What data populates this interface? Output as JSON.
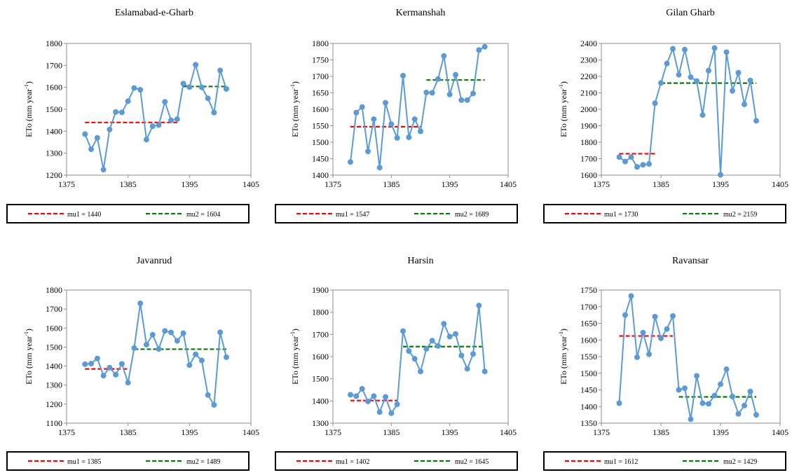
{
  "chart_data": [
    {
      "type": "line",
      "title": "Eslamabad-e-Gharb",
      "ylabel": "ETo (mm year",
      "ylabel_sup": "-1",
      "ylabel_end": ")",
      "xlim": [
        1375,
        1405
      ],
      "xticks": [
        "1375",
        "1385",
        "1395",
        "1405"
      ],
      "ylim": [
        1200,
        1800
      ],
      "yticks": [
        "1200",
        "1300",
        "1400",
        "1500",
        "1600",
        "1700",
        "1800"
      ],
      "x": [
        1378,
        1379,
        1380,
        1381,
        1382,
        1383,
        1384,
        1385,
        1386,
        1387,
        1388,
        1389,
        1390,
        1391,
        1392,
        1393,
        1394,
        1395,
        1396,
        1397,
        1398,
        1399,
        1400,
        1401
      ],
      "values": [
        1387,
        1318,
        1370,
        1225,
        1408,
        1488,
        1486,
        1537,
        1597,
        1589,
        1362,
        1423,
        1428,
        1534,
        1450,
        1455,
        1617,
        1601,
        1703,
        1600,
        1550,
        1485,
        1677,
        1593
      ],
      "mu1": {
        "label": "mu1 = 1440",
        "value": 1440,
        "x": [
          1378,
          1393
        ],
        "color": "#ff0000"
      },
      "mu2": {
        "label": "mu2 = 1604",
        "value": 1604,
        "x": [
          1394,
          1401
        ],
        "color": "#008000"
      },
      "series_color": "#5b9bd5",
      "grid": false,
      "legend": "bottom"
    },
    {
      "type": "line",
      "title": "Kermanshah",
      "ylabel": "ETo (mm year",
      "ylabel_sup": "-1",
      "ylabel_end": ")",
      "xlim": [
        1375,
        1405
      ],
      "xticks": [
        "1375",
        "1385",
        "1395",
        "1405"
      ],
      "ylim": [
        1400,
        1800
      ],
      "yticks": [
        "1400",
        "1450",
        "1500",
        "1550",
        "1600",
        "1650",
        "1700",
        "1750",
        "1800"
      ],
      "x": [
        1378,
        1379,
        1380,
        1381,
        1382,
        1383,
        1384,
        1385,
        1386,
        1387,
        1388,
        1389,
        1390,
        1391,
        1392,
        1393,
        1394,
        1395,
        1396,
        1397,
        1398,
        1399,
        1400,
        1401
      ],
      "values": [
        1440,
        1590,
        1607,
        1472,
        1570,
        1423,
        1620,
        1555,
        1513,
        1702,
        1515,
        1570,
        1533,
        1651,
        1650,
        1692,
        1762,
        1645,
        1705,
        1628,
        1628,
        1648,
        1780,
        1790
      ],
      "mu1": {
        "label": "mu1 = 1547",
        "value": 1547,
        "x": [
          1378,
          1390
        ],
        "color": "#ff0000"
      },
      "mu2": {
        "label": "mu2 = 1689",
        "value": 1689,
        "x": [
          1391,
          1401
        ],
        "color": "#008000"
      },
      "series_color": "#5b9bd5",
      "grid": false,
      "legend": "bottom"
    },
    {
      "type": "line",
      "title": "Gilan Gharb",
      "ylabel": "ETo (mm year",
      "ylabel_sup": "-1",
      "ylabel_end": ")",
      "xlim": [
        1375,
        1405
      ],
      "xticks": [
        "1375",
        "1385",
        "1395",
        "1405"
      ],
      "ylim": [
        1600,
        2400
      ],
      "yticks": [
        "1600",
        "1700",
        "1800",
        "1900",
        "2000",
        "2100",
        "2200",
        "2300",
        "2400"
      ],
      "x": [
        1378,
        1379,
        1380,
        1381,
        1382,
        1383,
        1384,
        1385,
        1386,
        1387,
        1388,
        1389,
        1390,
        1391,
        1392,
        1393,
        1394,
        1395,
        1396,
        1397,
        1398,
        1399,
        1400,
        1401
      ],
      "values": [
        1710,
        1683,
        1710,
        1650,
        1663,
        1668,
        2037,
        2160,
        2278,
        2368,
        2210,
        2363,
        2195,
        2172,
        1965,
        2235,
        2372,
        1602,
        2347,
        2112,
        2222,
        2030,
        2175,
        1930
      ],
      "mu1": {
        "label": "mu1 = 1730",
        "value": 1730,
        "x": [
          1378,
          1384
        ],
        "color": "#ff0000"
      },
      "mu2": {
        "label": "mu2 = 2159",
        "value": 2159,
        "x": [
          1385,
          1401
        ],
        "color": "#008000"
      },
      "series_color": "#5b9bd5",
      "grid": false,
      "legend": "bottom"
    },
    {
      "type": "line",
      "title": "Javanrud",
      "ylabel": "ETo (mm year",
      "ylabel_sup": "-1",
      "ylabel_end": ")",
      "xlim": [
        1375,
        1405
      ],
      "xticks": [
        "1375",
        "1385",
        "1395",
        "1405"
      ],
      "ylim": [
        1100,
        1800
      ],
      "yticks": [
        "1100",
        "1200",
        "1300",
        "1400",
        "1500",
        "1600",
        "1700",
        "1800"
      ],
      "x": [
        1378,
        1379,
        1380,
        1381,
        1382,
        1383,
        1384,
        1385,
        1386,
        1387,
        1388,
        1389,
        1390,
        1391,
        1392,
        1393,
        1394,
        1395,
        1396,
        1397,
        1398,
        1399,
        1400,
        1401
      ],
      "values": [
        1410,
        1413,
        1440,
        1350,
        1392,
        1355,
        1412,
        1313,
        1495,
        1730,
        1513,
        1565,
        1490,
        1585,
        1577,
        1533,
        1573,
        1405,
        1462,
        1430,
        1248,
        1196,
        1578,
        1447
      ],
      "mu1": {
        "label": "mu1 = 1385",
        "value": 1385,
        "x": [
          1378,
          1385
        ],
        "color": "#ff0000"
      },
      "mu2": {
        "label": "mu2 = 1489",
        "value": 1489,
        "x": [
          1386,
          1401
        ],
        "color": "#008000"
      },
      "series_color": "#5b9bd5",
      "grid": false,
      "legend": "bottom"
    },
    {
      "type": "line",
      "title": "Harsin",
      "ylabel": "ETo (mm year",
      "ylabel_sup": "-1",
      "ylabel_end": ")",
      "xlim": [
        1375,
        1405
      ],
      "xticks": [
        "1375",
        "1385",
        "1395",
        "1405"
      ],
      "ylim": [
        1300,
        1900
      ],
      "yticks": [
        "1300",
        "1400",
        "1500",
        "1600",
        "1700",
        "1800",
        "1900"
      ],
      "x": [
        1378,
        1379,
        1380,
        1381,
        1382,
        1383,
        1384,
        1385,
        1386,
        1387,
        1388,
        1389,
        1390,
        1391,
        1392,
        1393,
        1394,
        1395,
        1396,
        1397,
        1398,
        1399,
        1400,
        1401
      ],
      "values": [
        1428,
        1422,
        1455,
        1398,
        1422,
        1350,
        1418,
        1345,
        1385,
        1715,
        1625,
        1590,
        1533,
        1635,
        1672,
        1648,
        1748,
        1690,
        1702,
        1605,
        1545,
        1612,
        1830,
        1533
      ],
      "mu1": {
        "label": "mu1 = 1402",
        "value": 1402,
        "x": [
          1378,
          1386
        ],
        "color": "#ff0000"
      },
      "mu2": {
        "label": "mu2 = 1645",
        "value": 1645,
        "x": [
          1387,
          1401
        ],
        "color": "#008000"
      },
      "series_color": "#5b9bd5",
      "grid": false,
      "legend": "bottom"
    },
    {
      "type": "line",
      "title": "Ravansar",
      "ylabel": "ETo (mm year",
      "ylabel_sup": "-1",
      "ylabel_end": ")",
      "xlim": [
        1375,
        1405
      ],
      "xticks": [
        "1375",
        "1385",
        "1395",
        "1405"
      ],
      "ylim": [
        1350,
        1750
      ],
      "yticks": [
        "1350",
        "1400",
        "1450",
        "1500",
        "1550",
        "1600",
        "1650",
        "1700",
        "1750"
      ],
      "x": [
        1378,
        1379,
        1380,
        1381,
        1382,
        1383,
        1384,
        1385,
        1386,
        1387,
        1388,
        1389,
        1390,
        1391,
        1392,
        1393,
        1394,
        1395,
        1396,
        1397,
        1398,
        1399,
        1400,
        1401
      ],
      "values": [
        1410,
        1675,
        1732,
        1548,
        1622,
        1557,
        1670,
        1605,
        1633,
        1672,
        1450,
        1455,
        1362,
        1492,
        1410,
        1408,
        1433,
        1467,
        1512,
        1430,
        1378,
        1403,
        1445,
        1375
      ],
      "mu1": {
        "label": "mu1 = 1612",
        "value": 1612,
        "x": [
          1378,
          1387
        ],
        "color": "#ff0000"
      },
      "mu2": {
        "label": "mu2 = 1429",
        "value": 1429,
        "x": [
          1388,
          1401
        ],
        "color": "#008000"
      },
      "series_color": "#5b9bd5",
      "grid": false,
      "legend": "bottom"
    }
  ]
}
